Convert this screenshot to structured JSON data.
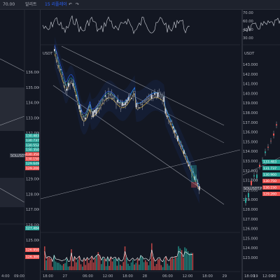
{
  "toolbar": {
    "items": [
      "70.00",
      "알리트",
      "15 리플레이",
      "↶",
      "↷"
    ],
    "colors": {
      "bg": "#1e222d",
      "accent": "#2962ff"
    }
  },
  "left_pane": {
    "prices": [
      "136.000",
      "135.000",
      "134.000",
      "133.000",
      "132.000",
      "131.000",
      "130.000",
      "129.000",
      "128.000",
      "127.000",
      "126.000",
      "125.000"
    ],
    "tags": [
      {
        "text": "130.483",
        "color": "#26a69a"
      },
      {
        "text": "130.737",
        "color": "#26a69a"
      },
      {
        "text": "130.552",
        "color": "#26a69a"
      },
      {
        "text": "130.350",
        "color": "#26a69a"
      },
      {
        "text": "130.350",
        "color": "#ef5350"
      },
      {
        "text": "130.150",
        "color": "#ef5350"
      },
      {
        "text": "129.649",
        "color": "#26a69a"
      },
      {
        "text": "129.200",
        "color": "#ef5350"
      },
      {
        "text": "127.484",
        "color": "#26a69a"
      },
      {
        "text": "126.950",
        "color": "#ef5350"
      },
      {
        "text": "126.300",
        "color": "#ef5350"
      }
    ],
    "symbol_tag": "SOLUSDT",
    "time_labels": [
      "4:00",
      "09:00"
    ]
  },
  "middle_pane": {
    "rsi_labels": [
      "70.00",
      "60.00",
      "40.00",
      "30.00"
    ],
    "usdt_label": "USDT",
    "prices": [
      "136.000",
      "135.000",
      "134.000",
      "133.000",
      "132.000",
      "131.000",
      "130.000",
      "129.000",
      "128.000",
      "127.000",
      "126.000",
      "125.000",
      "124.000",
      "123.000"
    ],
    "tags": [
      {
        "text": "130.905",
        "color": "#26a69a"
      },
      {
        "text": "130.483",
        "color": "#26a69a"
      },
      {
        "text": "130.737",
        "color": "#26a69a"
      },
      {
        "text": "130.552",
        "color": "#26a69a"
      },
      {
        "text": "130.350",
        "color": "#ef5350"
      },
      {
        "text": "130.150",
        "color": "#ef5350"
      },
      {
        "text": "129.649",
        "color": "#26a69a"
      },
      {
        "text": "129.200",
        "color": "#ef5350"
      },
      {
        "text": "127.484",
        "color": "#26a69a"
      },
      {
        "text": "126.950",
        "color": "#ef5350"
      },
      {
        "text": "126.300",
        "color": "#ef5350"
      }
    ],
    "time_labels": [
      "18:00",
      "27",
      "06:00",
      "12:00",
      "18:00",
      "28",
      "06:00",
      "12:00",
      "18:00",
      "29"
    ]
  },
  "right_pane": {
    "rsi_labels": [
      "70.00",
      "60.00",
      "40.00",
      "30.00"
    ],
    "usdt_label": "USDT",
    "prices": [
      "143.000",
      "142.000",
      "141.000",
      "140.000",
      "139.000",
      "138.000",
      "137.000",
      "136.000",
      "135.000",
      "134.000",
      "133.000",
      "132.000",
      "131.000",
      "130.000",
      "129.000",
      "128.000",
      "127.000",
      "126.000",
      "125.000",
      "124.000",
      "123.000"
    ],
    "tags": [
      {
        "text": "133.483",
        "color": "#26a69a"
      },
      {
        "text": "131.737",
        "color": "#26a69a"
      },
      {
        "text": "130.960",
        "color": "#26a69a"
      },
      {
        "text": "130.750",
        "color": "#ef5350"
      },
      {
        "text": "130.150",
        "color": "#ef5350"
      },
      {
        "text": "129.260",
        "color": "#ef5350"
      }
    ],
    "symbol_tag": "SOLUSDT.P",
    "time_labels": [
      "18:00",
      "19",
      "12:00",
      "20"
    ]
  }
}
